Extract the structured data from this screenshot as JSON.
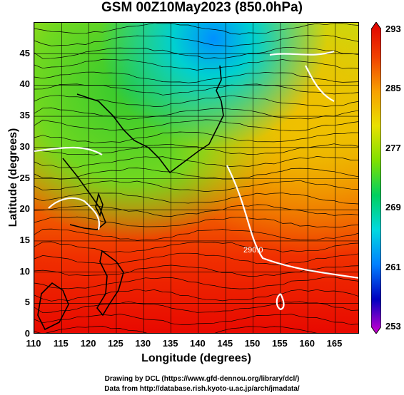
{
  "title": "GSM 00Z10May2023 (850.0hPa)",
  "axes": {
    "xlabel": "Longitude (degrees)",
    "ylabel": "Latitude  (degrees)",
    "x_ticks": [
      "110",
      "115",
      "120",
      "125",
      "130",
      "135",
      "140",
      "145",
      "150",
      "155",
      "160",
      "165"
    ],
    "x_tick_values": [
      110,
      115,
      120,
      125,
      130,
      135,
      140,
      145,
      150,
      155,
      160,
      165
    ],
    "y_ticks": [
      "0",
      "5",
      "10",
      "15",
      "20",
      "25",
      "30",
      "35",
      "40",
      "45"
    ],
    "y_tick_values": [
      0,
      5,
      10,
      15,
      20,
      25,
      30,
      35,
      40,
      45
    ],
    "xlim": [
      110,
      169.5
    ],
    "ylim": [
      0,
      50
    ]
  },
  "colorbar": {
    "labels": [
      "293",
      "285",
      "277",
      "269",
      "261",
      "253"
    ],
    "values": [
      293,
      285,
      277,
      269,
      261,
      253
    ],
    "min": 253,
    "max": 293,
    "colors": [
      "#d000d0",
      "#0000c0",
      "#0080ff",
      "#00d8e0",
      "#00d060",
      "#80e000",
      "#e8e000",
      "#f8a000",
      "#f04000",
      "#e00000"
    ]
  },
  "credits": {
    "line1": "Drawing by DCL (https://www.gfd-dennou.org/library/dcl/)",
    "line2": "Data from http://database.rish.kyoto-u.ac.jp/arch/jmadata/"
  },
  "contour_label": "290.0"
}
